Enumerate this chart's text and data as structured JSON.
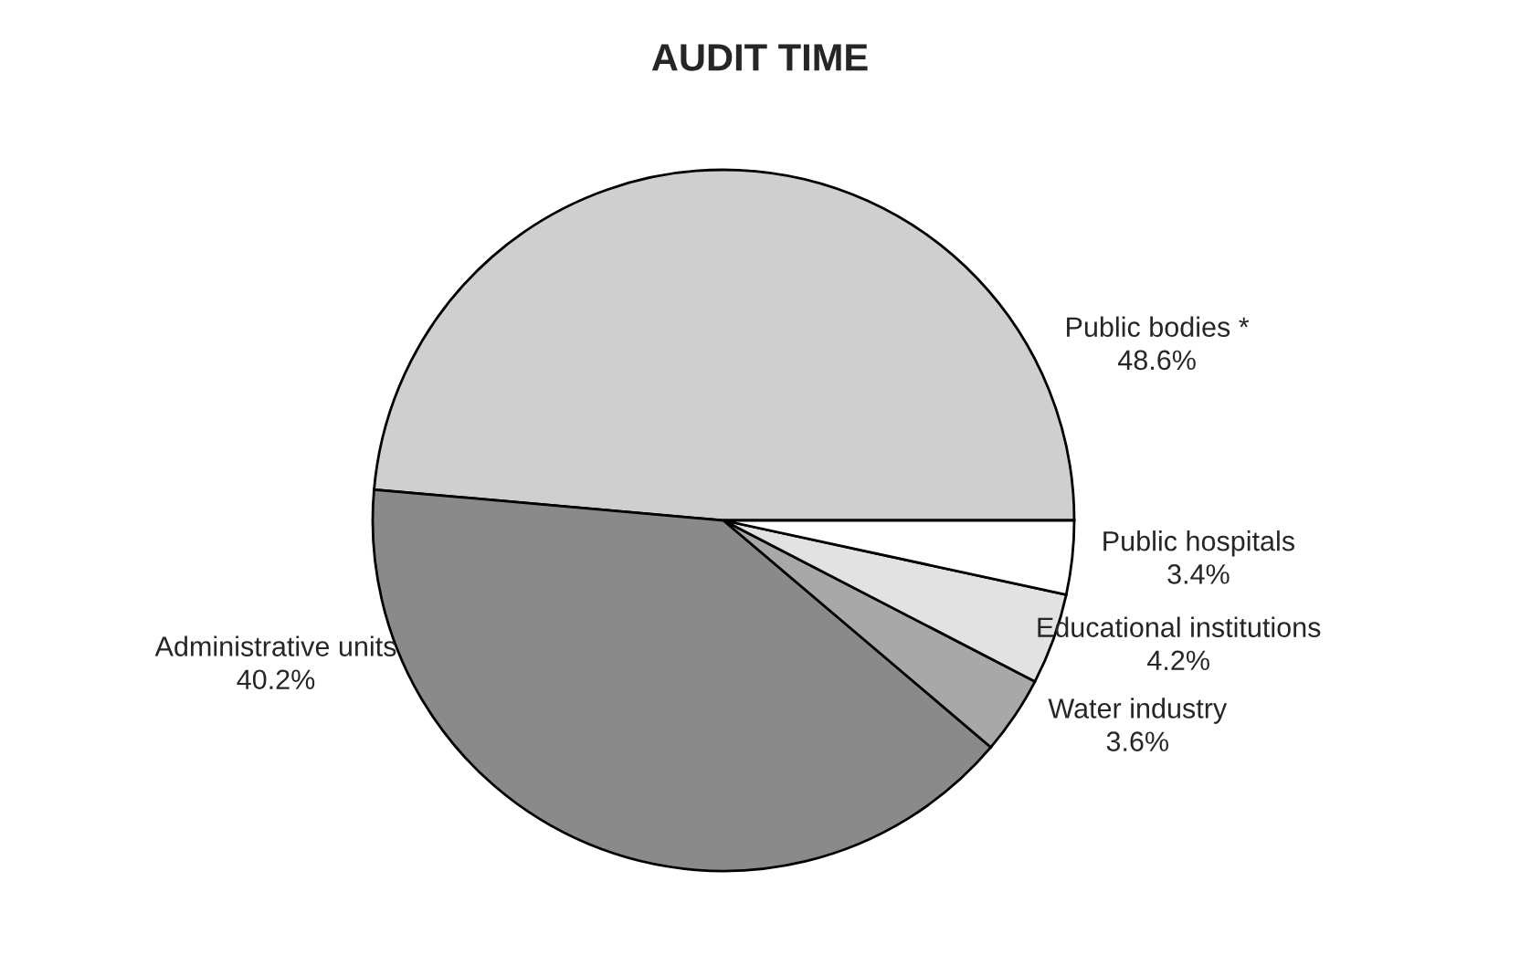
{
  "chart_data": {
    "type": "pie",
    "title": "AUDIT TIME",
    "categories": [
      "Public bodies *",
      "Administrative units",
      "Water industry",
      "Educational institutions",
      "Public hospitals"
    ],
    "values": [
      48.6,
      40.2,
      3.6,
      4.2,
      3.4
    ],
    "value_labels": [
      "48.6%",
      "40.2%",
      "3.6%",
      "4.2%",
      "3.4%"
    ],
    "colors": [
      "#cfcfcf",
      "#8a8a8a",
      "#a8a8a8",
      "#e2e2e2",
      "#ffffff"
    ]
  }
}
